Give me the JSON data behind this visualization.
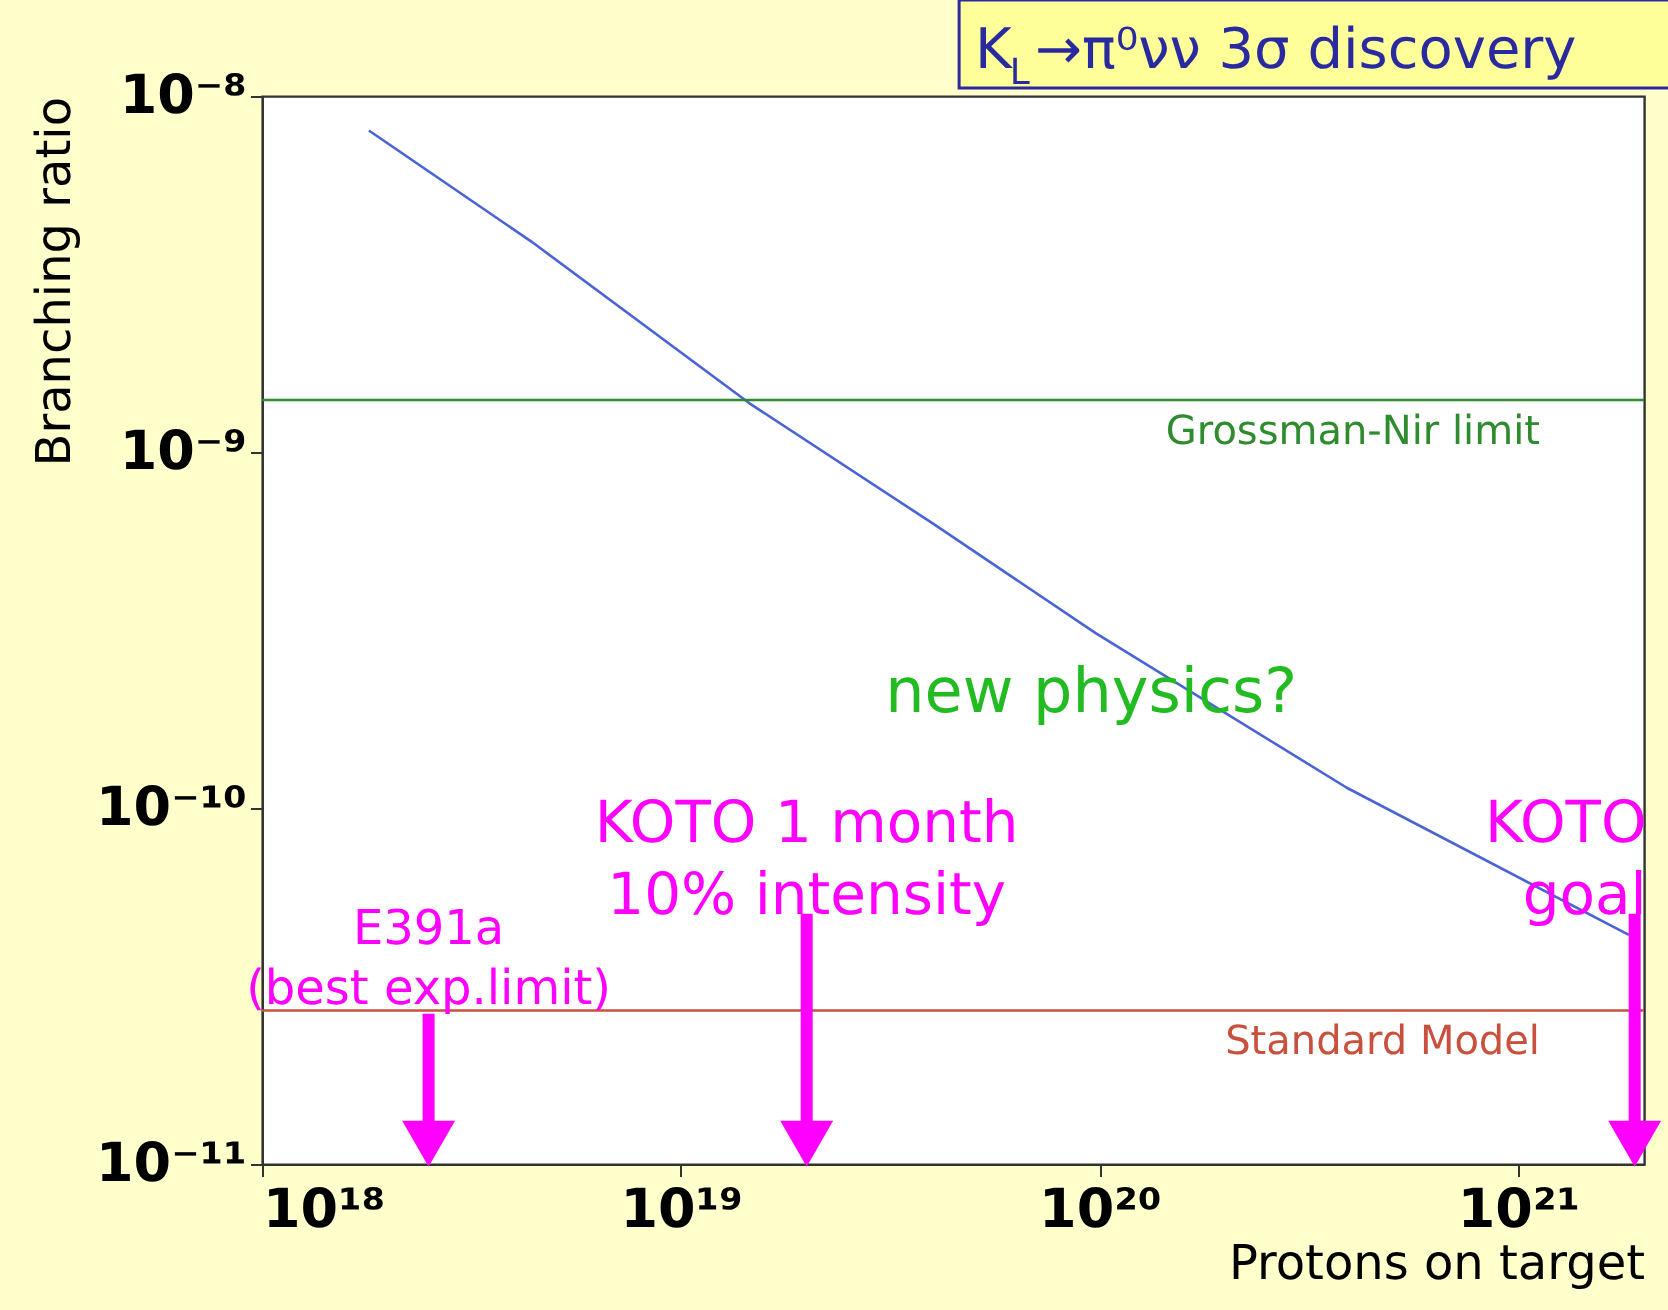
{
  "chart_data": {
    "type": "line",
    "title": "K$_{L}$→π⁰νν 3σ discovery",
    "xlabel": "Protons on target",
    "ylabel": "Branching ratio",
    "log": "xy",
    "grid": false,
    "marker": "none",
    "line_style": "solid",
    "xlim": [
      1e+18,
      2e+21
    ],
    "ylim": [
      1e-11,
      1e-08
    ],
    "xticks": [
      {
        "value": 1e+18,
        "label": "10¹⁸"
      },
      {
        "value": 1e+19,
        "label": "10¹⁹"
      },
      {
        "value": 1e+20,
        "label": "10²⁰"
      },
      {
        "value": 1e+21,
        "label": "10²¹"
      }
    ],
    "yticks": [
      {
        "value": 1e-11,
        "label": "10⁻¹¹"
      },
      {
        "value": 1e-10,
        "label": "10⁻¹⁰"
      },
      {
        "value": 1e-09,
        "label": "10⁻⁹"
      },
      {
        "value": 1e-08,
        "label": "10⁻⁸"
      }
    ],
    "x": [
      1.8e+18,
      4.4e+18,
      1.46e+19,
      4e+19,
      9.8e+19,
      3.9e+20,
      1.84e+21
    ],
    "series": [
      {
        "color": "#4a63d6",
        "values": [
          8e-09,
          3.9e-09,
          1.37e-09,
          6.3e-10,
          3.1e-10,
          1.14e-10,
          4.4e-11
        ]
      },
      {
        "type": "scatter",
        "marker": "triangle",
        "color": "#ff00ff",
        "x": [
          2.5e+18,
          2e+19,
          1.9e+21
        ],
        "values": [
          1.14e-11,
          1.14e-11,
          1.14e-11
        ]
      }
    ],
    "ref_lines": [
      {
        "axis": "y",
        "value": 1.4e-09,
        "label": "Grossman-Nir limit",
        "color": "#2e8b2e"
      },
      {
        "axis": "y",
        "value": 2.7e-11,
        "label": "Standard Model",
        "color": "#c8503c"
      }
    ],
    "annotations": [
      {
        "text": "E391a\n(best exp.limit)",
        "x": 2.5e+18,
        "y": 1.14e-11
      },
      {
        "text": "KOTO 1 month\n10% intensity",
        "x": 2e+19,
        "y": 1.14e-11
      },
      {
        "text": "KOTO\ngoal",
        "x": 1.9e+21,
        "y": 1.14e-11
      },
      "new physics?"
    ]
  }
}
